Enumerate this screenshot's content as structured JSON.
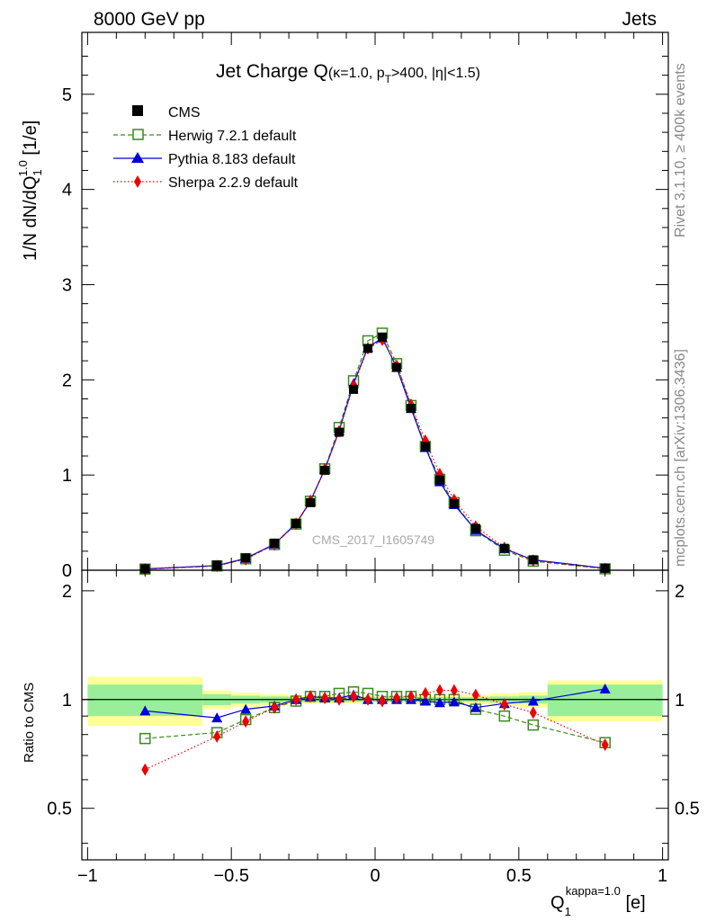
{
  "header": {
    "left": "8000 GeV pp",
    "right": "Jets"
  },
  "side_text": {
    "top": "Rivet 3.1.10, ≥ 400k events",
    "bottom": "mcplots.cern.ch [arXiv:1306.3436]"
  },
  "watermark": "CMS_2017_I1605749",
  "colors": {
    "cms": "#000000",
    "herwig": "#3a8a1a",
    "pythia": "#0000dd",
    "sherpa": "#ee0000",
    "band_inner": "#99ee99",
    "band_outer": "#ffff99"
  },
  "chart_data": [
    {
      "type": "line",
      "title_main": "Jet Charge Q",
      "title_sub": "(κ=1.0, p",
      "title_sub_index": "T",
      "title_sub_rest": ">400, |η|<1.5)",
      "ylabel": "1/N dN/dQ",
      "ylabel_sub": "1",
      "ylabel_sup": "1.0",
      "ylabel_unit": " [1/e]",
      "xlim": [
        -1.02,
        1.02
      ],
      "ylim": [
        0,
        5.65
      ],
      "yticks": [
        "0",
        "1",
        "2",
        "3",
        "4",
        "5"
      ],
      "x": [
        -0.8,
        -0.55,
        -0.45,
        -0.35,
        -0.275,
        -0.225,
        -0.175,
        -0.125,
        -0.075,
        -0.025,
        0.025,
        0.075,
        0.125,
        0.175,
        0.225,
        0.275,
        0.35,
        0.45,
        0.55,
        0.8
      ],
      "series": [
        {
          "name": "CMS",
          "values": [
            0.015,
            0.055,
            0.13,
            0.285,
            0.49,
            0.71,
            1.05,
            1.45,
            1.9,
            2.33,
            2.45,
            2.13,
            1.7,
            1.3,
            0.95,
            0.7,
            0.44,
            0.23,
            0.11,
            0.02
          ]
        },
        {
          "name": "Herwig 7.2.1 default",
          "values": [
            0.012,
            0.045,
            0.12,
            0.27,
            0.485,
            0.725,
            1.065,
            1.5,
            1.99,
            2.41,
            2.49,
            2.17,
            1.73,
            1.3,
            0.955,
            0.71,
            0.415,
            0.21,
            0.095,
            0.015
          ]
        },
        {
          "name": "Pythia 8.183 default",
          "values": [
            0.014,
            0.049,
            0.125,
            0.275,
            0.49,
            0.725,
            1.06,
            1.465,
            1.96,
            2.34,
            2.44,
            2.13,
            1.7,
            1.29,
            0.93,
            0.69,
            0.42,
            0.225,
            0.109,
            0.021
          ]
        },
        {
          "name": "Sherpa 2.2.9 default",
          "values": [
            0.01,
            0.045,
            0.115,
            0.27,
            0.49,
            0.73,
            1.06,
            1.46,
            1.94,
            2.33,
            2.42,
            2.15,
            1.74,
            1.36,
            1.01,
            0.74,
            0.46,
            0.235,
            0.102,
            0.015
          ]
        }
      ]
    },
    {
      "type": "line",
      "ylabel": "Ratio to CMS",
      "xlabel": "Q",
      "xlabel_sub": "1",
      "xlabel_sup": "kappa=1.0",
      "xlabel_unit": " [e]",
      "xlim": [
        -1.02,
        1.02
      ],
      "ylim": [
        0.36,
        2.28
      ],
      "xticks": [
        "−1",
        "−0.5",
        "0",
        "0.5",
        "1"
      ],
      "yticks": [
        "0.5",
        "1",
        "2"
      ],
      "x": [
        -0.8,
        -0.55,
        -0.45,
        -0.35,
        -0.275,
        -0.225,
        -0.175,
        -0.125,
        -0.075,
        -0.025,
        0.025,
        0.075,
        0.125,
        0.175,
        0.225,
        0.275,
        0.35,
        0.45,
        0.55,
        0.8
      ],
      "bands": [
        {
          "x": [
            -1.0,
            -0.6,
            -0.5,
            -0.4,
            -0.3,
            -0.05,
            0.05,
            0.3,
            0.4,
            0.5,
            0.6,
            1.0
          ],
          "inner": [
            0.1,
            0.035,
            0.025,
            0.02,
            0.015,
            0.015,
            0.015,
            0.015,
            0.02,
            0.025,
            0.1
          ],
          "outer": [
            0.155,
            0.06,
            0.045,
            0.035,
            0.025,
            0.02,
            0.025,
            0.03,
            0.04,
            0.05,
            0.13
          ]
        }
      ],
      "series": [
        {
          "name": "Herwig 7.2.1 default",
          "values": [
            0.78,
            0.81,
            0.88,
            0.95,
            0.99,
            1.02,
            1.02,
            1.04,
            1.05,
            1.04,
            1.02,
            1.02,
            1.02,
            1.0,
            1.0,
            1.0,
            0.94,
            0.9,
            0.85,
            0.76
          ]
        },
        {
          "name": "Pythia 8.183 default",
          "values": [
            0.93,
            0.89,
            0.94,
            0.96,
            1.0,
            1.02,
            1.01,
            1.01,
            1.03,
            1.0,
            1.0,
            1.0,
            1.0,
            0.99,
            0.98,
            0.985,
            0.95,
            0.975,
            0.99,
            1.07
          ]
        },
        {
          "name": "Sherpa 2.2.9 default",
          "values": [
            0.64,
            0.79,
            0.87,
            0.95,
            1.0,
            1.02,
            1.01,
            1.0,
            1.02,
            1.0,
            0.99,
            1.01,
            1.02,
            1.04,
            1.06,
            1.06,
            1.03,
            0.97,
            0.92,
            0.75
          ]
        }
      ]
    }
  ]
}
